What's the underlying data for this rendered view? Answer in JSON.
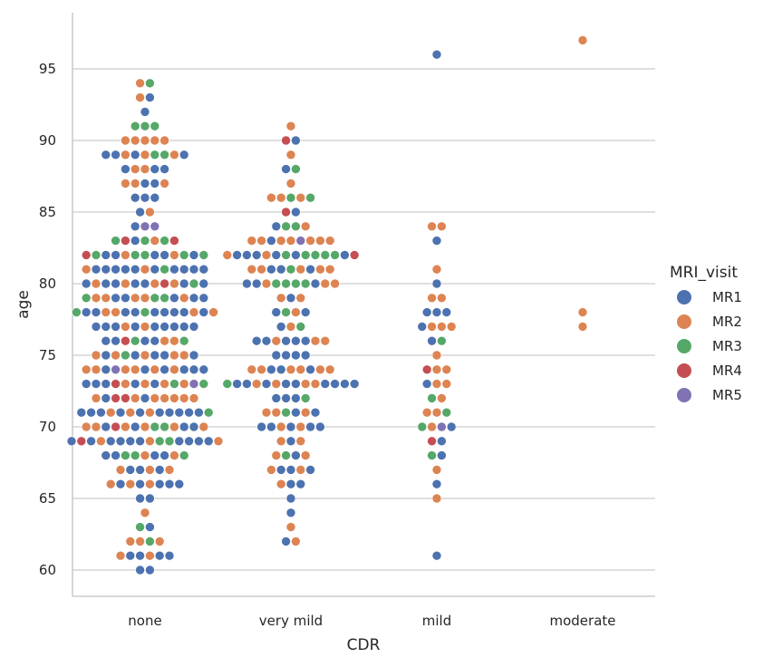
{
  "chart_data": {
    "type": "scatter",
    "subtype": "swarm",
    "xlabel": "CDR",
    "ylabel": "age",
    "categories": [
      "none",
      "very mild",
      "mild",
      "moderate"
    ],
    "y_ticks": [
      60,
      65,
      70,
      75,
      80,
      85,
      90,
      95
    ],
    "ylim": [
      58,
      99
    ],
    "grid": "horizontal",
    "legend": {
      "title": "MRI_visit",
      "placement": "right",
      "entries": [
        {
          "name": "MR1",
          "color": "#4c72b0"
        },
        {
          "name": "MR2",
          "color": "#dd8452"
        },
        {
          "name": "MR3",
          "color": "#55a868"
        },
        {
          "name": "MR4",
          "color": "#c44e52"
        },
        {
          "name": "MR5",
          "color": "#8172b3"
        }
      ]
    },
    "groups": {
      "none": {
        "94": [
          "MR2",
          "MR3"
        ],
        "93": [
          "MR2",
          "MR1"
        ],
        "92": [
          "MR1"
        ],
        "91": [
          "MR3",
          "MR3",
          "MR3"
        ],
        "90": [
          "MR2",
          "MR2",
          "MR2",
          "MR2",
          "MR2"
        ],
        "89": [
          "MR1",
          "MR1",
          "MR2",
          "MR1",
          "MR2",
          "MR3",
          "MR3",
          "MR2",
          "MR1"
        ],
        "88": [
          "MR1",
          "MR2",
          "MR2",
          "MR1",
          "MR1"
        ],
        "87": [
          "MR2",
          "MR2",
          "MR1",
          "MR1",
          "MR2"
        ],
        "86": [
          "MR1",
          "MR1",
          "MR1"
        ],
        "85": [
          "MR1",
          "MR2"
        ],
        "84": [
          "MR1",
          "MR5",
          "MR5"
        ],
        "83": [
          "MR3",
          "MR4",
          "MR1",
          "MR3",
          "MR2",
          "MR3",
          "MR4"
        ],
        "82": [
          "MR4",
          "MR3",
          "MR1",
          "MR1",
          "MR2",
          "MR3",
          "MR3",
          "MR1",
          "MR1",
          "MR2",
          "MR3",
          "MR1",
          "MR3"
        ],
        "81": [
          "MR2",
          "MR1",
          "MR1",
          "MR1",
          "MR1",
          "MR1",
          "MR2",
          "MR1",
          "MR3",
          "MR1",
          "MR1",
          "MR1",
          "MR1"
        ],
        "80": [
          "MR1",
          "MR2",
          "MR1",
          "MR1",
          "MR2",
          "MR1",
          "MR1",
          "MR2",
          "MR4",
          "MR2",
          "MR1",
          "MR3",
          "MR1"
        ],
        "79": [
          "MR3",
          "MR2",
          "MR2",
          "MR1",
          "MR1",
          "MR2",
          "MR2",
          "MR3",
          "MR3",
          "MR1",
          "MR2",
          "MR1",
          "MR1"
        ],
        "78": [
          "MR3",
          "MR1",
          "MR1",
          "MR2",
          "MR2",
          "MR1",
          "MR1",
          "MR3",
          "MR1",
          "MR1",
          "MR1",
          "MR1",
          "MR2",
          "MR1",
          "MR2"
        ],
        "77": [
          "MR1",
          "MR1",
          "MR1",
          "MR2",
          "MR1",
          "MR2",
          "MR1",
          "MR1",
          "MR1",
          "MR1",
          "MR1"
        ],
        "76": [
          "MR1",
          "MR1",
          "MR4",
          "MR3",
          "MR1",
          "MR1",
          "MR2",
          "MR2",
          "MR3"
        ],
        "75": [
          "MR2",
          "MR1",
          "MR2",
          "MR3",
          "MR1",
          "MR2",
          "MR1",
          "MR1",
          "MR2",
          "MR2",
          "MR1"
        ],
        "74": [
          "MR2",
          "MR2",
          "MR1",
          "MR5",
          "MR2",
          "MR2",
          "MR1",
          "MR2",
          "MR1",
          "MR2",
          "MR1",
          "MR1",
          "MR1"
        ],
        "73": [
          "MR1",
          "MR1",
          "MR1",
          "MR4",
          "MR2",
          "MR1",
          "MR2",
          "MR1",
          "MR2",
          "MR3",
          "MR2",
          "MR5",
          "MR3"
        ],
        "72": [
          "MR2",
          "MR1",
          "MR4",
          "MR4",
          "MR2",
          "MR1",
          "MR2",
          "MR2",
          "MR2",
          "MR2",
          "MR2"
        ],
        "71": [
          "MR1",
          "MR1",
          "MR1",
          "MR2",
          "MR1",
          "MR2",
          "MR1",
          "MR2",
          "MR1",
          "MR1",
          "MR1",
          "MR1",
          "MR1",
          "MR3"
        ],
        "70": [
          "MR2",
          "MR2",
          "MR1",
          "MR4",
          "MR2",
          "MR1",
          "MR2",
          "MR3",
          "MR3",
          "MR2",
          "MR1",
          "MR1",
          "MR2"
        ],
        "69": [
          "MR1",
          "MR4",
          "MR1",
          "MR2",
          "MR1",
          "MR1",
          "MR1",
          "MR1",
          "MR2",
          "MR3",
          "MR3",
          "MR1",
          "MR1",
          "MR1",
          "MR1",
          "MR2"
        ],
        "68": [
          "MR1",
          "MR1",
          "MR3",
          "MR3",
          "MR2",
          "MR1",
          "MR1",
          "MR2",
          "MR3"
        ],
        "67": [
          "MR2",
          "MR1",
          "MR1",
          "MR2",
          "MR1",
          "MR2"
        ],
        "66": [
          "MR2",
          "MR1",
          "MR2",
          "MR1",
          "MR2",
          "MR1",
          "MR1",
          "MR1"
        ],
        "65": [
          "MR1",
          "MR1"
        ],
        "64": [
          "MR2"
        ],
        "63": [
          "MR3",
          "MR1"
        ],
        "62": [
          "MR2",
          "MR2",
          "MR3",
          "MR2"
        ],
        "61": [
          "MR2",
          "MR1",
          "MR1",
          "MR2",
          "MR1",
          "MR1"
        ],
        "60": [
          "MR1",
          "MR1"
        ]
      },
      "very mild": {
        "91": [
          "MR2"
        ],
        "90": [
          "MR4",
          "MR1"
        ],
        "89": [
          "MR2"
        ],
        "88": [
          "MR1",
          "MR3"
        ],
        "87": [
          "MR2"
        ],
        "86": [
          "MR2",
          "MR2",
          "MR3",
          "MR2",
          "MR3"
        ],
        "85": [
          "MR4",
          "MR1"
        ],
        "84": [
          "MR1",
          "MR3",
          "MR3",
          "MR2"
        ],
        "83": [
          "MR2",
          "MR2",
          "MR1",
          "MR2",
          "MR2",
          "MR5",
          "MR2",
          "MR2",
          "MR2"
        ],
        "82": [
          "MR2",
          "MR1",
          "MR1",
          "MR1",
          "MR2",
          "MR1",
          "MR3",
          "MR1",
          "MR3",
          "MR3",
          "MR3",
          "MR3",
          "MR1",
          "MR4"
        ],
        "81": [
          "MR2",
          "MR2",
          "MR1",
          "MR1",
          "MR3",
          "MR2",
          "MR1",
          "MR2",
          "MR2"
        ],
        "80": [
          "MR1",
          "MR1",
          "MR2",
          "MR3",
          "MR3",
          "MR3",
          "MR3",
          "MR1",
          "MR2",
          "MR2"
        ],
        "79": [
          "MR2",
          "MR1",
          "MR2"
        ],
        "78": [
          "MR1",
          "MR3",
          "MR2",
          "MR1"
        ],
        "77": [
          "MR1",
          "MR2",
          "MR3"
        ],
        "76": [
          "MR1",
          "MR1",
          "MR2",
          "MR1",
          "MR1",
          "MR1",
          "MR2",
          "MR2"
        ],
        "75": [
          "MR1",
          "MR1",
          "MR1",
          "MR1"
        ],
        "74": [
          "MR2",
          "MR2",
          "MR1",
          "MR1",
          "MR2",
          "MR2",
          "MR1",
          "MR2",
          "MR2"
        ],
        "73": [
          "MR3",
          "MR1",
          "MR1",
          "MR2",
          "MR1",
          "MR2",
          "MR1",
          "MR1",
          "MR2",
          "MR2",
          "MR1",
          "MR1",
          "MR1",
          "MR1"
        ],
        "72": [
          "MR1",
          "MR1",
          "MR1",
          "MR3"
        ],
        "71": [
          "MR2",
          "MR2",
          "MR3",
          "MR1",
          "MR2",
          "MR1"
        ],
        "70": [
          "MR1",
          "MR1",
          "MR2",
          "MR1",
          "MR2",
          "MR1",
          "MR1"
        ],
        "69": [
          "MR2",
          "MR1",
          "MR2"
        ],
        "68": [
          "MR2",
          "MR3",
          "MR1",
          "MR2"
        ],
        "67": [
          "MR2",
          "MR1",
          "MR1",
          "MR2",
          "MR1"
        ],
        "66": [
          "MR2",
          "MR1",
          "MR1"
        ],
        "65": [
          "MR1"
        ],
        "64": [
          "MR1"
        ],
        "63": [
          "MR2"
        ],
        "62": [
          "MR1",
          "MR2"
        ]
      },
      "mild": {
        "96": [
          "MR1"
        ],
        "84": [
          "MR2",
          "MR2"
        ],
        "83": [
          "MR1"
        ],
        "81": [
          "MR2"
        ],
        "80": [
          "MR1"
        ],
        "79": [
          "MR2",
          "MR2"
        ],
        "78": [
          "MR1",
          "MR1",
          "MR1"
        ],
        "77": [
          "MR1",
          "MR2",
          "MR2",
          "MR2"
        ],
        "76": [
          "MR1",
          "MR3"
        ],
        "75": [
          "MR2"
        ],
        "74": [
          "MR4",
          "MR2",
          "MR2"
        ],
        "73": [
          "MR1",
          "MR2",
          "MR2"
        ],
        "72": [
          "MR3",
          "MR2"
        ],
        "71": [
          "MR2",
          "MR2",
          "MR3"
        ],
        "70": [
          "MR3",
          "MR2",
          "MR5",
          "MR1"
        ],
        "69": [
          "MR4",
          "MR1"
        ],
        "68": [
          "MR3",
          "MR1"
        ],
        "67": [
          "MR2"
        ],
        "66": [
          "MR1"
        ],
        "65": [
          "MR2"
        ],
        "61": [
          "MR1"
        ]
      },
      "moderate": {
        "97": [
          "MR2"
        ],
        "78": [
          "MR2"
        ],
        "77": [
          "MR2"
        ]
      }
    }
  }
}
